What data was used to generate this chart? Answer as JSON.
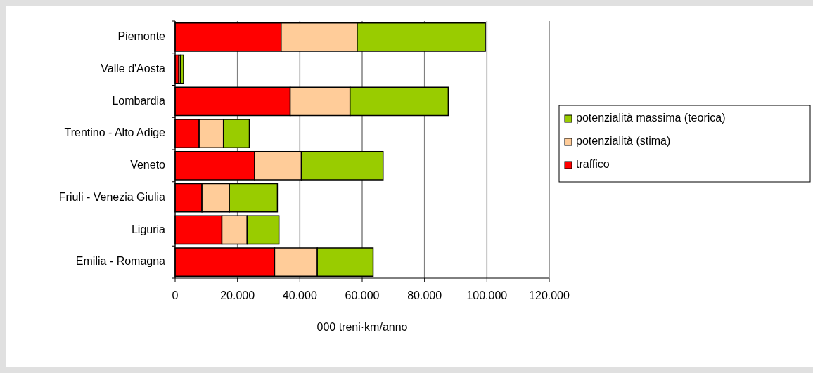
{
  "chart_data": {
    "type": "bar",
    "orientation": "horizontal",
    "stacked": true,
    "xlabel": "000 treni·km/anno",
    "categories": [
      "Piemonte",
      "Valle d'Aosta",
      "Lombardia",
      "Trentino - Alto Adige",
      "Veneto",
      "Friuli - Venezia Giulia",
      "Liguria",
      "Emilia - Romagna"
    ],
    "series": [
      {
        "name": "traffico",
        "color": "#ff0000",
        "values": [
          34000,
          1200,
          36900,
          7700,
          25500,
          8600,
          15000,
          31900
        ]
      },
      {
        "name": "potenzialità (stima)",
        "color": "#ffcc99",
        "values": [
          24400,
          500,
          19200,
          7800,
          15000,
          8800,
          8100,
          13700
        ]
      },
      {
        "name": "potenzialità massima (teorica)",
        "color": "#99cc00",
        "values": [
          41100,
          1000,
          31500,
          8300,
          26200,
          15400,
          10200,
          17900
        ]
      }
    ],
    "xlim": [
      0,
      120000
    ],
    "xticks": [
      {
        "value": 0,
        "label": "0"
      },
      {
        "value": 20000,
        "label": "20.000"
      },
      {
        "value": 40000,
        "label": "40.000"
      },
      {
        "value": 60000,
        "label": "60.000"
      },
      {
        "value": 80000,
        "label": "80.000"
      },
      {
        "value": 100000,
        "label": "100.000"
      },
      {
        "value": 120000,
        "label": "120.000"
      }
    ],
    "grid": "x",
    "legend": "right"
  }
}
